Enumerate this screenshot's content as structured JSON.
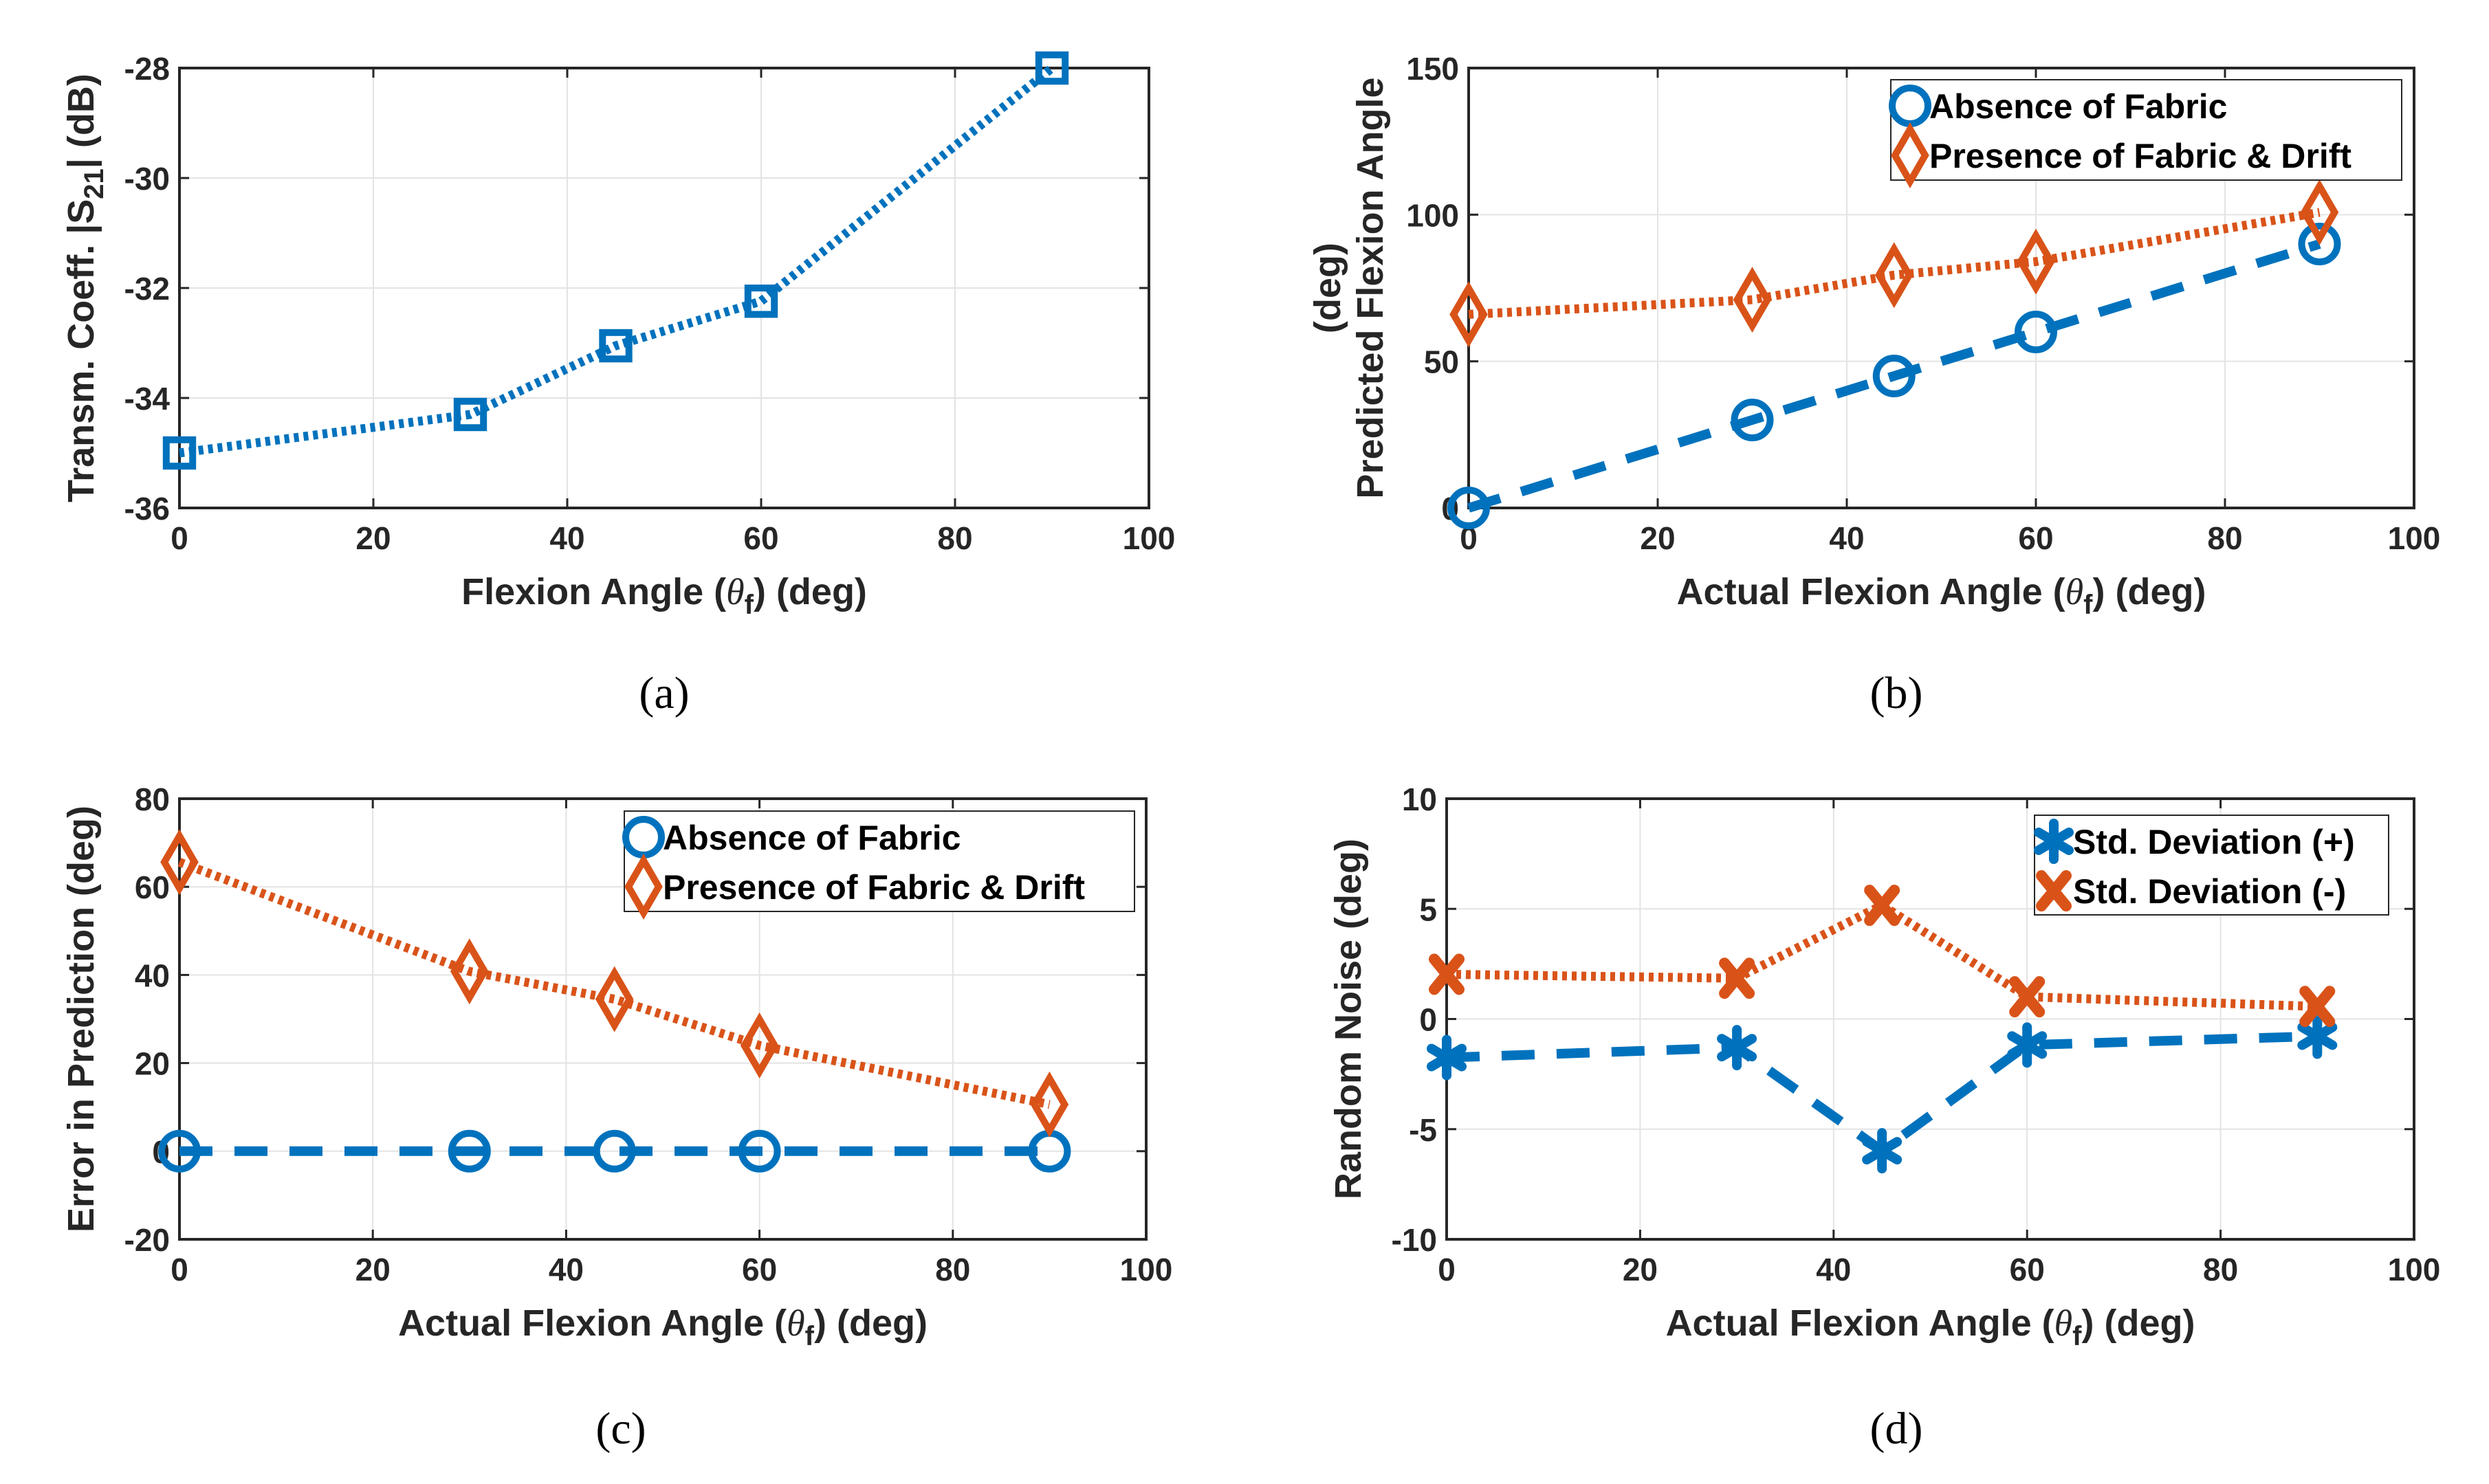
{
  "colors": {
    "blue": "#0072BD",
    "orange": "#D95319",
    "axis": "#262626",
    "grid": "#E3E3E3"
  },
  "chart_data": [
    {
      "type": "line",
      "caption": "(a)",
      "xlabel": [
        {
          "t": "Flexion Angle ("
        },
        {
          "t": "θ",
          "italic": true
        },
        {
          "t": "f",
          "sub": true
        },
        {
          "t": ") (deg)"
        }
      ],
      "ylabel": [
        [
          {
            "t": "Transm. Coeff. |S"
          },
          {
            "t": "21",
            "sub": true
          },
          {
            "t": "| (dB)"
          }
        ]
      ],
      "xlim": [
        0,
        100
      ],
      "ylim": [
        -36,
        -28
      ],
      "xticks": [
        0,
        20,
        40,
        60,
        80,
        100
      ],
      "yticks": [
        -36,
        -34,
        -32,
        -30,
        -28
      ],
      "grid": true,
      "legend": null,
      "series": [
        {
          "name": "",
          "color": "blue",
          "style": "dotted",
          "marker": "square",
          "x": [
            0,
            30,
            45,
            60,
            90
          ],
          "y": [
            -35.0,
            -34.3,
            -33.05,
            -32.24,
            -28.0
          ]
        }
      ]
    },
    {
      "type": "line",
      "caption": "(b)",
      "xlabel": [
        {
          "t": "Actual Flexion Angle ("
        },
        {
          "t": "θ",
          "italic": true
        },
        {
          "t": "f",
          "sub": true
        },
        {
          "t": ") (deg)"
        }
      ],
      "ylabel": [
        [
          {
            "t": "Predicted Flexion Angle"
          }
        ],
        [
          {
            "t": "(deg)"
          }
        ]
      ],
      "xlim": [
        0,
        100
      ],
      "ylim": [
        0,
        150
      ],
      "xticks": [
        0,
        20,
        40,
        60,
        80,
        100
      ],
      "yticks": [
        0,
        50,
        100,
        150
      ],
      "grid": true,
      "legend": "top-right",
      "series": [
        {
          "name": "Absence of Fabric",
          "color": "blue",
          "style": "dashed",
          "marker": "circle",
          "x": [
            0,
            30,
            45,
            60,
            90
          ],
          "y": [
            0,
            30,
            45,
            60,
            90
          ]
        },
        {
          "name": "Presence of Fabric & Drift",
          "color": "orange",
          "style": "dotted",
          "marker": "diamond",
          "x": [
            0,
            30,
            45,
            60,
            90
          ],
          "y": [
            66,
            71,
            79.4,
            84,
            100.8
          ]
        }
      ]
    },
    {
      "type": "line",
      "caption": "(c)",
      "xlabel": [
        {
          "t": "Actual Flexion Angle ("
        },
        {
          "t": "θ",
          "italic": true
        },
        {
          "t": "f",
          "sub": true
        },
        {
          "t": ") (deg)"
        }
      ],
      "ylabel": [
        [
          {
            "t": "Error in Prediction (deg)"
          }
        ]
      ],
      "xlim": [
        0,
        100
      ],
      "ylim": [
        -20,
        80
      ],
      "xticks": [
        0,
        20,
        40,
        60,
        80,
        100
      ],
      "yticks": [
        -20,
        0,
        20,
        40,
        60,
        80
      ],
      "grid": true,
      "legend": "top-right",
      "series": [
        {
          "name": "Absence of Fabric",
          "color": "blue",
          "style": "dashed",
          "marker": "circle",
          "x": [
            0,
            30,
            45,
            60,
            90
          ],
          "y": [
            0,
            0,
            0,
            0,
            0
          ]
        },
        {
          "name": "Presence of Fabric & Drift",
          "color": "orange",
          "style": "dotted",
          "marker": "diamond",
          "x": [
            0,
            30,
            45,
            60,
            90
          ],
          "y": [
            65.6,
            40.8,
            34.5,
            24.0,
            10.6
          ]
        }
      ]
    },
    {
      "type": "line",
      "caption": "(d)",
      "xlabel": [
        {
          "t": "Actual Flexion Angle ("
        },
        {
          "t": "θ",
          "italic": true
        },
        {
          "t": "f",
          "sub": true
        },
        {
          "t": ") (deg)"
        }
      ],
      "ylabel": [
        [
          {
            "t": "Random Noise (deg)"
          }
        ]
      ],
      "xlim": [
        0,
        100
      ],
      "ylim": [
        -10,
        10
      ],
      "xticks": [
        0,
        20,
        40,
        60,
        80,
        100
      ],
      "yticks": [
        -10,
        -5,
        0,
        5,
        10
      ],
      "grid": true,
      "legend": "top-right",
      "series": [
        {
          "name": "Std. Deviation (+)",
          "color": "blue",
          "style": "dashed",
          "marker": "asterisk",
          "x": [
            0,
            30,
            45,
            60,
            90
          ],
          "y": [
            -1.75,
            -1.3,
            -5.98,
            -1.18,
            -0.78
          ]
        },
        {
          "name": "Std. Deviation (-)",
          "color": "orange",
          "style": "dotted",
          "marker": "x",
          "x": [
            0,
            30,
            45,
            60,
            90
          ],
          "y": [
            2.03,
            1.85,
            5.16,
            1.01,
            0.57
          ]
        }
      ]
    }
  ]
}
